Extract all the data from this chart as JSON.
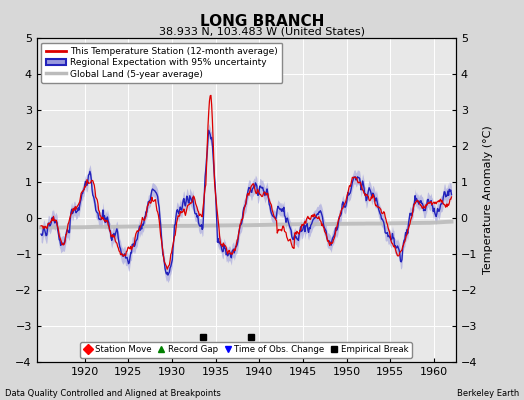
{
  "title": "LONG BRANCH",
  "subtitle": "38.933 N, 103.483 W (United States)",
  "ylabel": "Temperature Anomaly (°C)",
  "xlabel_left": "Data Quality Controlled and Aligned at Breakpoints",
  "xlabel_right": "Berkeley Earth",
  "ylim": [
    -4,
    5
  ],
  "yticks": [
    -4,
    -3,
    -2,
    -1,
    0,
    1,
    2,
    3,
    4,
    5
  ],
  "xlim": [
    1914.5,
    1962.5
  ],
  "xticks": [
    1920,
    1925,
    1930,
    1935,
    1940,
    1945,
    1950,
    1955,
    1960
  ],
  "bg_color": "#d8d8d8",
  "plot_bg_color": "#e8e8e8",
  "grid_color": "#ffffff",
  "station_color": "#dd0000",
  "regional_color": "#2222bb",
  "regional_fill_color": "#9999dd",
  "global_color": "#bbbbbb",
  "empirical_breaks": [
    1933.5,
    1939.0
  ],
  "empirical_break_y": -3.3,
  "legend_entries": [
    "This Temperature Station (12-month average)",
    "Regional Expectation with 95% uncertainty",
    "Global Land (5-year average)"
  ],
  "marker_legend": [
    "Station Move",
    "Record Gap",
    "Time of Obs. Change",
    "Empirical Break"
  ]
}
